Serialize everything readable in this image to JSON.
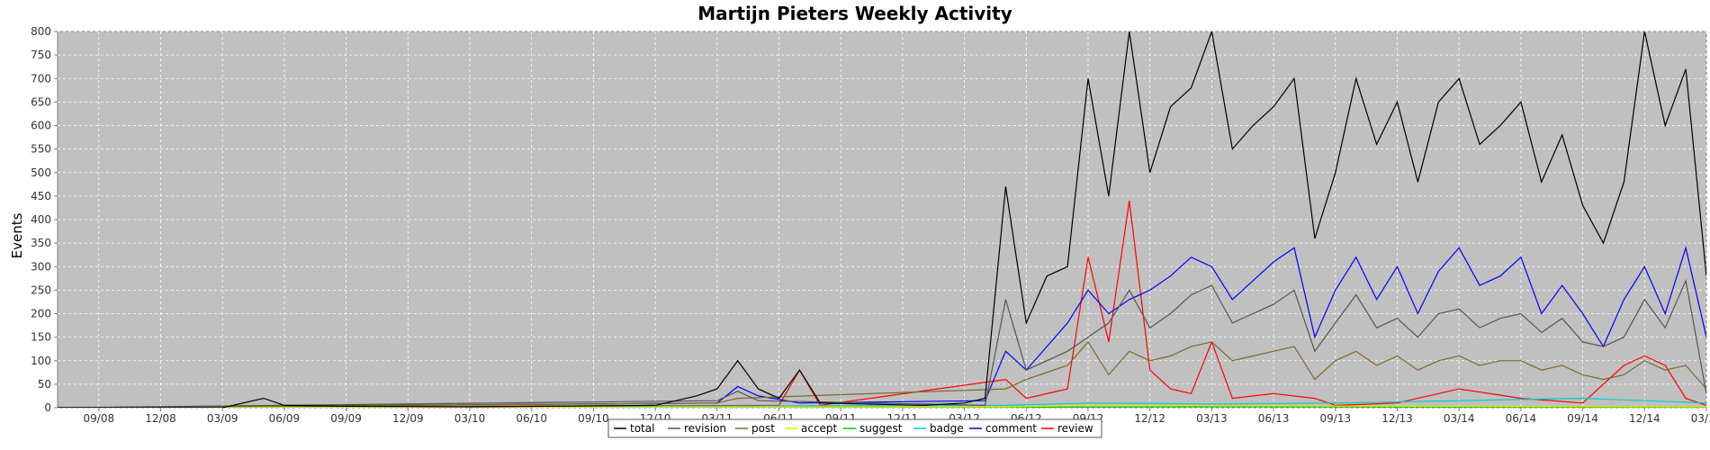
{
  "chart_data": {
    "type": "line",
    "title": "Martijn Pieters Weekly Activity",
    "xlabel": "",
    "ylabel": "Events",
    "ylim": [
      0,
      800
    ],
    "yticks": [
      0,
      50,
      100,
      150,
      200,
      250,
      300,
      350,
      400,
      450,
      500,
      550,
      600,
      650,
      700,
      750,
      800
    ],
    "grid": true,
    "legend": "bottom-center",
    "x_tick_labels": [
      "09/08",
      "12/08",
      "03/09",
      "06/09",
      "09/09",
      "12/09",
      "03/10",
      "06/10",
      "09/10",
      "12/10",
      "03/11",
      "06/11",
      "09/11",
      "12/11",
      "03/12",
      "06/12",
      "09/12",
      "12/12",
      "03/13",
      "06/13",
      "09/13",
      "12/13",
      "03/14",
      "06/14",
      "09/14",
      "12/14",
      "03/15"
    ],
    "x_start": "2008-07",
    "x_end": "2015-03",
    "series": [
      {
        "name": "total",
        "color": "#000000",
        "points": [
          [
            "2008-07",
            0
          ],
          [
            "2009-03",
            0
          ],
          [
            "2009-05",
            20
          ],
          [
            "2009-06",
            5
          ],
          [
            "2009-09",
            3
          ],
          [
            "2010-03",
            2
          ],
          [
            "2010-12",
            5
          ],
          [
            "2011-01",
            15
          ],
          [
            "2011-02",
            25
          ],
          [
            "2011-03",
            40
          ],
          [
            "2011-04",
            100
          ],
          [
            "2011-05",
            40
          ],
          [
            "2011-06",
            20
          ],
          [
            "2011-07",
            80
          ],
          [
            "2011-08",
            10
          ],
          [
            "2011-10",
            8
          ],
          [
            "2012-01",
            5
          ],
          [
            "2012-03",
            10
          ],
          [
            "2012-04",
            20
          ],
          [
            "2012-05",
            470
          ],
          [
            "2012-06",
            180
          ],
          [
            "2012-07",
            280
          ],
          [
            "2012-08",
            300
          ],
          [
            "2012-09",
            700
          ],
          [
            "2012-10",
            450
          ],
          [
            "2012-11",
            820
          ],
          [
            "2012-12",
            500
          ],
          [
            "2013-01",
            640
          ],
          [
            "2013-02",
            680
          ],
          [
            "2013-03",
            800
          ],
          [
            "2013-04",
            550
          ],
          [
            "2013-05",
            600
          ],
          [
            "2013-06",
            640
          ],
          [
            "2013-07",
            700
          ],
          [
            "2013-08",
            360
          ],
          [
            "2013-09",
            500
          ],
          [
            "2013-10",
            700
          ],
          [
            "2013-11",
            560
          ],
          [
            "2013-12",
            650
          ],
          [
            "2014-01",
            480
          ],
          [
            "2014-02",
            650
          ],
          [
            "2014-03",
            700
          ],
          [
            "2014-04",
            560
          ],
          [
            "2014-05",
            600
          ],
          [
            "2014-06",
            650
          ],
          [
            "2014-07",
            480
          ],
          [
            "2014-08",
            580
          ],
          [
            "2014-09",
            430
          ],
          [
            "2014-10",
            350
          ],
          [
            "2014-11",
            480
          ],
          [
            "2014-12",
            820
          ],
          [
            "2015-01",
            600
          ],
          [
            "2015-02",
            720
          ],
          [
            "2015-03",
            280
          ]
        ]
      },
      {
        "name": "revision",
        "color": "#555555",
        "points": [
          [
            "2008-07",
            0
          ],
          [
            "2011-03",
            15
          ],
          [
            "2011-04",
            35
          ],
          [
            "2011-05",
            15
          ],
          [
            "2012-04",
            5
          ],
          [
            "2012-05",
            230
          ],
          [
            "2012-06",
            80
          ],
          [
            "2012-08",
            120
          ],
          [
            "2012-09",
            150
          ],
          [
            "2012-10",
            180
          ],
          [
            "2012-11",
            250
          ],
          [
            "2012-12",
            170
          ],
          [
            "2013-01",
            200
          ],
          [
            "2013-02",
            240
          ],
          [
            "2013-03",
            260
          ],
          [
            "2013-04",
            180
          ],
          [
            "2013-05",
            200
          ],
          [
            "2013-06",
            220
          ],
          [
            "2013-07",
            250
          ],
          [
            "2013-08",
            120
          ],
          [
            "2013-09",
            180
          ],
          [
            "2013-10",
            240
          ],
          [
            "2013-11",
            170
          ],
          [
            "2013-12",
            190
          ],
          [
            "2014-01",
            150
          ],
          [
            "2014-02",
            200
          ],
          [
            "2014-03",
            210
          ],
          [
            "2014-04",
            170
          ],
          [
            "2014-05",
            190
          ],
          [
            "2014-06",
            200
          ],
          [
            "2014-07",
            160
          ],
          [
            "2014-08",
            190
          ],
          [
            "2014-09",
            140
          ],
          [
            "2014-10",
            130
          ],
          [
            "2014-11",
            150
          ],
          [
            "2014-12",
            230
          ],
          [
            "2015-01",
            170
          ],
          [
            "2015-02",
            270
          ],
          [
            "2015-03",
            30
          ]
        ]
      },
      {
        "name": "post",
        "color": "#7a6a2a",
        "points": [
          [
            "2008-07",
            0
          ],
          [
            "2011-03",
            10
          ],
          [
            "2011-04",
            20
          ],
          [
            "2012-05",
            40
          ],
          [
            "2012-06",
            60
          ],
          [
            "2012-08",
            90
          ],
          [
            "2012-09",
            140
          ],
          [
            "2012-10",
            70
          ],
          [
            "2012-11",
            120
          ],
          [
            "2012-12",
            100
          ],
          [
            "2013-01",
            110
          ],
          [
            "2013-02",
            130
          ],
          [
            "2013-03",
            140
          ],
          [
            "2013-04",
            100
          ],
          [
            "2013-05",
            110
          ],
          [
            "2013-06",
            120
          ],
          [
            "2013-07",
            130
          ],
          [
            "2013-08",
            60
          ],
          [
            "2013-09",
            100
          ],
          [
            "2013-10",
            120
          ],
          [
            "2013-11",
            90
          ],
          [
            "2013-12",
            110
          ],
          [
            "2014-01",
            80
          ],
          [
            "2014-02",
            100
          ],
          [
            "2014-03",
            110
          ],
          [
            "2014-04",
            90
          ],
          [
            "2014-05",
            100
          ],
          [
            "2014-06",
            100
          ],
          [
            "2014-07",
            80
          ],
          [
            "2014-08",
            90
          ],
          [
            "2014-09",
            70
          ],
          [
            "2014-10",
            60
          ],
          [
            "2014-11",
            70
          ],
          [
            "2014-12",
            100
          ],
          [
            "2015-01",
            80
          ],
          [
            "2015-02",
            90
          ],
          [
            "2015-03",
            40
          ]
        ]
      },
      {
        "name": "accept",
        "color": "#e6e600",
        "points": [
          [
            "2008-07",
            0
          ],
          [
            "2012-05",
            2
          ],
          [
            "2012-09",
            5
          ],
          [
            "2013-03",
            4
          ],
          [
            "2014-03",
            3
          ],
          [
            "2015-03",
            2
          ]
        ]
      },
      {
        "name": "suggest",
        "color": "#00cc00",
        "points": [
          [
            "2008-07",
            0
          ],
          [
            "2012-05",
            1
          ],
          [
            "2013-03",
            2
          ],
          [
            "2015-03",
            1
          ]
        ]
      },
      {
        "name": "badge",
        "color": "#00cccc",
        "points": [
          [
            "2008-07",
            0
          ],
          [
            "2012-05",
            5
          ],
          [
            "2012-09",
            10
          ],
          [
            "2013-03",
            8
          ],
          [
            "2013-09",
            10
          ],
          [
            "2014-03",
            15
          ],
          [
            "2014-09",
            20
          ],
          [
            "2014-12",
            15
          ],
          [
            "2015-03",
            10
          ]
        ]
      },
      {
        "name": "comment",
        "color": "#0000ff",
        "points": [
          [
            "2008-07",
            0
          ],
          [
            "2011-03",
            10
          ],
          [
            "2011-04",
            45
          ],
          [
            "2011-05",
            25
          ],
          [
            "2011-07",
            10
          ],
          [
            "2012-04",
            15
          ],
          [
            "2012-05",
            120
          ],
          [
            "2012-06",
            80
          ],
          [
            "2012-07",
            130
          ],
          [
            "2012-08",
            180
          ],
          [
            "2012-09",
            250
          ],
          [
            "2012-10",
            200
          ],
          [
            "2012-11",
            230
          ],
          [
            "2012-12",
            250
          ],
          [
            "2013-01",
            280
          ],
          [
            "2013-02",
            320
          ],
          [
            "2013-03",
            300
          ],
          [
            "2013-04",
            230
          ],
          [
            "2013-05",
            270
          ],
          [
            "2013-06",
            310
          ],
          [
            "2013-07",
            340
          ],
          [
            "2013-08",
            150
          ],
          [
            "2013-09",
            250
          ],
          [
            "2013-10",
            320
          ],
          [
            "2013-11",
            230
          ],
          [
            "2013-12",
            300
          ],
          [
            "2014-01",
            200
          ],
          [
            "2014-02",
            290
          ],
          [
            "2014-03",
            340
          ],
          [
            "2014-04",
            260
          ],
          [
            "2014-05",
            280
          ],
          [
            "2014-06",
            320
          ],
          [
            "2014-07",
            200
          ],
          [
            "2014-08",
            260
          ],
          [
            "2014-09",
            200
          ],
          [
            "2014-10",
            130
          ],
          [
            "2014-11",
            230
          ],
          [
            "2014-12",
            300
          ],
          [
            "2015-01",
            200
          ],
          [
            "2015-02",
            340
          ],
          [
            "2015-03",
            150
          ]
        ]
      },
      {
        "name": "review",
        "color": "#ff0000",
        "points": [
          [
            "2008-07",
            0
          ],
          [
            "2011-06",
            5
          ],
          [
            "2011-07",
            80
          ],
          [
            "2011-08",
            5
          ],
          [
            "2012-05",
            60
          ],
          [
            "2012-06",
            20
          ],
          [
            "2012-08",
            40
          ],
          [
            "2012-09",
            320
          ],
          [
            "2012-10",
            140
          ],
          [
            "2012-11",
            440
          ],
          [
            "2012-12",
            80
          ],
          [
            "2013-01",
            40
          ],
          [
            "2013-02",
            30
          ],
          [
            "2013-03",
            140
          ],
          [
            "2013-04",
            20
          ],
          [
            "2013-06",
            30
          ],
          [
            "2013-08",
            20
          ],
          [
            "2013-09",
            5
          ],
          [
            "2013-12",
            10
          ],
          [
            "2014-03",
            40
          ],
          [
            "2014-06",
            20
          ],
          [
            "2014-09",
            10
          ],
          [
            "2014-11",
            90
          ],
          [
            "2014-12",
            110
          ],
          [
            "2015-01",
            90
          ],
          [
            "2015-02",
            20
          ],
          [
            "2015-03",
            5
          ]
        ]
      }
    ]
  }
}
